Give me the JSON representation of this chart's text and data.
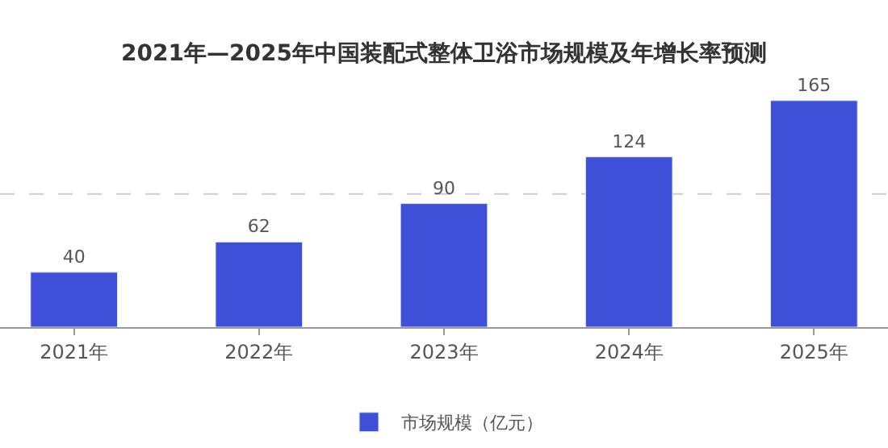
{
  "chart_data": {
    "type": "bar",
    "title": "2021年—2025年中国装配式整体卫浴市场规模及年增长率预测",
    "categories": [
      "2021年",
      "2022年",
      "2023年",
      "2024年",
      "2025年"
    ],
    "series": [
      {
        "name": "市场规模（亿元）",
        "color": "#3f4fd8",
        "values": [
          40,
          62,
          90,
          124,
          165
        ]
      }
    ],
    "data_labels": true,
    "legend": "bottom",
    "ref_lines": [
      {
        "axis": "y",
        "value": 97,
        "color": "#cccccc",
        "line_style": "dashed"
      }
    ]
  }
}
